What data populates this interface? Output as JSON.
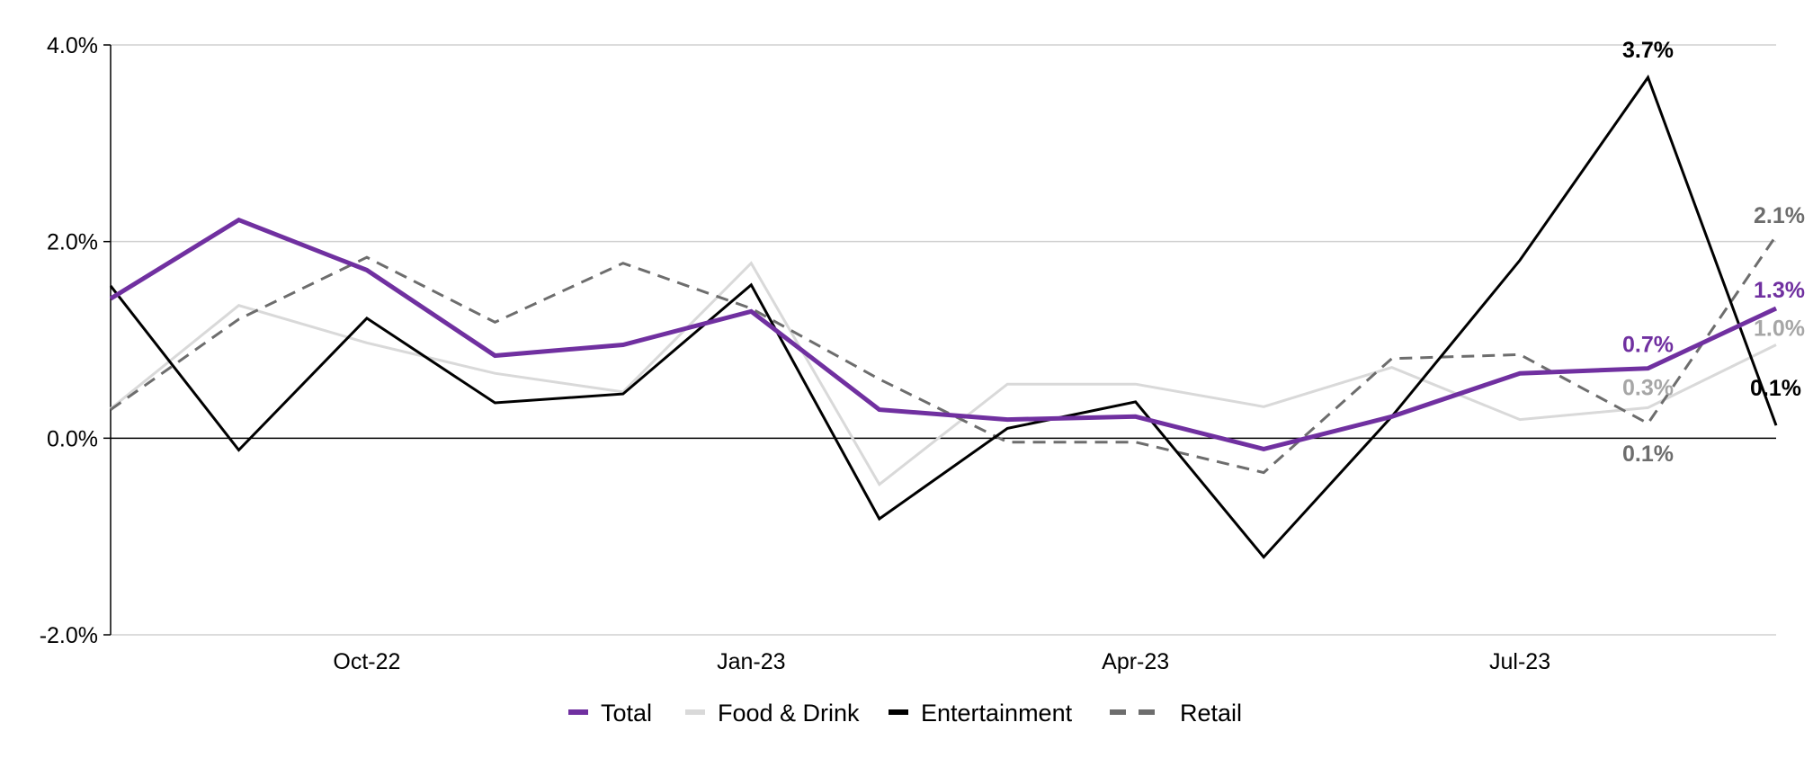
{
  "chart_data": {
    "type": "line",
    "title": "",
    "xlabel": "",
    "ylabel": "",
    "ylim": [
      -0.02,
      0.04
    ],
    "y_ticks": [
      {
        "value": 0.04,
        "label": "4.0%"
      },
      {
        "value": 0.02,
        "label": "2.0%"
      },
      {
        "value": 0.0,
        "label": "0.0%"
      },
      {
        "value": -0.02,
        "label": "-2.0%"
      }
    ],
    "x": [
      "Aug-22",
      "Sep-22",
      "Oct-22",
      "Nov-22",
      "Dec-22",
      "Jan-23",
      "Feb-23",
      "Mar-23",
      "Apr-23",
      "May-23",
      "Jun-23",
      "Jul-23",
      "Aug-23",
      "Sep-23"
    ],
    "x_ticks": [
      {
        "index": 2,
        "label": "Oct-22"
      },
      {
        "index": 5,
        "label": "Jan-23"
      },
      {
        "index": 8,
        "label": "Apr-23"
      },
      {
        "index": 11,
        "label": "Jul-23"
      }
    ],
    "grid": true,
    "legend_position": "bottom",
    "series": [
      {
        "name": "Food & Drink",
        "color": "#d9d9d9",
        "style": "solid",
        "values": [
          0.003,
          0.0135,
          0.0097,
          0.0066,
          0.0047,
          0.0178,
          -0.0047,
          0.0055,
          0.0055,
          0.0032,
          0.0072,
          0.0019,
          0.0031,
          0.0095
        ]
      },
      {
        "name": "Retail",
        "color": "#6d6d6d",
        "style": "dashed",
        "values": [
          0.0029,
          0.0121,
          0.0184,
          0.0118,
          0.0178,
          0.0132,
          0.006,
          -0.0004,
          -0.0004,
          -0.0035,
          0.0081,
          0.0085,
          0.0015,
          0.0206
        ]
      },
      {
        "name": "Entertainment",
        "color": "#000000",
        "style": "solid",
        "values": [
          0.0155,
          -0.0012,
          0.0122,
          0.0036,
          0.0045,
          0.0156,
          -0.0082,
          0.001,
          0.0037,
          -0.0121,
          0.0022,
          0.0181,
          0.0367,
          0.0013
        ]
      },
      {
        "name": "Total",
        "color": "#7030a0",
        "style": "solid",
        "values": [
          0.0142,
          0.0222,
          0.0171,
          0.0084,
          0.0095,
          0.0129,
          0.0029,
          0.0019,
          0.0022,
          -0.0011,
          0.0022,
          0.0066,
          0.0071,
          0.0132
        ]
      }
    ],
    "legend_order": [
      "Total",
      "Food & Drink",
      "Entertainment",
      "Retail"
    ],
    "annotations": [
      {
        "series": "Entertainment",
        "index": 12,
        "text": "3.7%",
        "color": "#000000"
      },
      {
        "series": "Entertainment",
        "index": 13,
        "text": "0.1%",
        "color": "#000000"
      },
      {
        "series": "Retail",
        "index": 13,
        "text": "2.1%",
        "color": "#6d6d6d"
      },
      {
        "series": "Total",
        "index": 13,
        "text": "1.3%",
        "color": "#7030a0"
      },
      {
        "series": "Food & Drink",
        "index": 13,
        "text": "1.0%",
        "color": "#a6a6a6"
      },
      {
        "series": "Total",
        "index": 12,
        "text": "0.7%",
        "color": "#7030a0"
      },
      {
        "series": "Food & Drink",
        "index": 12,
        "text": "0.3%",
        "color": "#a6a6a6"
      },
      {
        "series": "Retail",
        "index": 12,
        "text": "0.1%",
        "color": "#6d6d6d"
      }
    ]
  }
}
